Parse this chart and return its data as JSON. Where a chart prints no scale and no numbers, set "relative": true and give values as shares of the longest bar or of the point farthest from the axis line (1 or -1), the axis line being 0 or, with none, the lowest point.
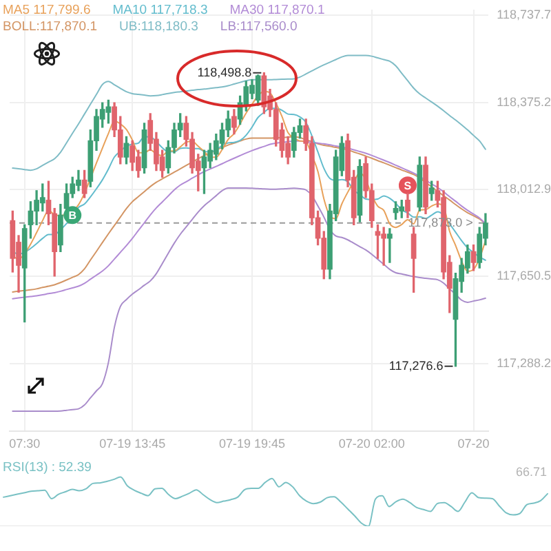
{
  "chart_data": [
    {
      "type": "candlestick",
      "categories": [
        null,
        null,
        "07:30",
        null,
        null,
        null,
        null,
        null,
        null,
        null,
        null,
        null,
        null,
        null,
        null,
        null,
        null,
        null,
        null,
        null,
        "07-19 13:45",
        null,
        null,
        null,
        null,
        null,
        null,
        null,
        null,
        null,
        null,
        null,
        null,
        null,
        null,
        null,
        null,
        null,
        null,
        null,
        "07-19 19:45",
        null,
        null,
        null,
        null,
        null,
        null,
        null,
        null,
        null,
        null,
        null,
        null,
        null,
        null,
        null,
        null,
        null,
        null,
        null,
        "07-20 02:00",
        null,
        null,
        null,
        null,
        null,
        null,
        null,
        null,
        null,
        null,
        null,
        null,
        null,
        null,
        null,
        null,
        "07-20",
        null,
        null
      ],
      "ohlc": [
        [
          117883,
          117923,
          117669,
          117726
        ],
        [
          117793,
          117821,
          117585,
          117697
        ],
        [
          117686,
          117866,
          117461,
          117850
        ],
        [
          117866,
          117962,
          117810,
          117923
        ],
        [
          117923,
          118008,
          117866,
          117968
        ],
        [
          117957,
          118036,
          117923,
          117979
        ],
        [
          117968,
          118047,
          117866,
          117912
        ],
        [
          117912,
          117934,
          117652,
          117754
        ],
        [
          117782,
          117951,
          117754,
          117906
        ],
        [
          117934,
          118036,
          117929,
          117996
        ],
        [
          117996,
          118064,
          117979,
          118036
        ],
        [
          118030,
          118092,
          118008,
          118052
        ],
        [
          118052,
          118092,
          117979,
          117996
        ],
        [
          118047,
          118261,
          118024,
          118216
        ],
        [
          118216,
          118346,
          118176,
          118317
        ],
        [
          118306,
          118374,
          118272,
          118346
        ],
        [
          118334,
          118385,
          118289,
          118357
        ],
        [
          118357,
          118374,
          118233,
          118261
        ],
        [
          118261,
          118317,
          118120,
          118148
        ],
        [
          118148,
          118233,
          118120,
          118205
        ],
        [
          118194,
          118216,
          118092,
          118126
        ],
        [
          118148,
          118176,
          118064,
          118092
        ],
        [
          118103,
          118289,
          118081,
          118261
        ],
        [
          118300,
          118329,
          118176,
          118205
        ],
        [
          118222,
          118250,
          118092,
          118120
        ],
        [
          118148,
          118176,
          118064,
          118092
        ],
        [
          118103,
          118216,
          118081,
          118188
        ],
        [
          118188,
          118289,
          118165,
          118261
        ],
        [
          118261,
          118329,
          118233,
          118289
        ],
        [
          118289,
          118317,
          118194,
          118222
        ],
        [
          118222,
          118250,
          118081,
          118103
        ],
        [
          118131,
          118160,
          118007,
          118092
        ],
        [
          118103,
          118176,
          117996,
          118148
        ],
        [
          118131,
          118205,
          118103,
          118176
        ],
        [
          118160,
          118244,
          118137,
          118216
        ],
        [
          118205,
          118289,
          118182,
          118261
        ],
        [
          118261,
          118340,
          118233,
          118306
        ],
        [
          118317,
          118346,
          118244,
          118272
        ],
        [
          118306,
          118402,
          118284,
          118374
        ],
        [
          118363,
          118464,
          118340,
          118441
        ],
        [
          118413,
          118470,
          118391,
          118447
        ],
        [
          118385,
          118490,
          118363,
          118486
        ],
        [
          118486,
          118498.8,
          118329,
          118357
        ],
        [
          118402,
          118430,
          118317,
          118346
        ],
        [
          118346,
          118374,
          118194,
          118222
        ],
        [
          118261,
          118289,
          118148,
          118176
        ],
        [
          118205,
          118233,
          118120,
          118148
        ],
        [
          118176,
          118272,
          118148,
          118250
        ],
        [
          118250,
          118306,
          118227,
          118278
        ],
        [
          118278,
          118306,
          118176,
          118205
        ],
        [
          118205,
          118233,
          117866,
          117895
        ],
        [
          117895,
          117923,
          117782,
          117810
        ],
        [
          117810,
          117838,
          117641,
          117681
        ],
        [
          117681,
          117951,
          117641,
          117923
        ],
        [
          117912,
          118176,
          117883,
          118148
        ],
        [
          118092,
          118233,
          118070,
          118205
        ],
        [
          118216,
          118244,
          118024,
          118052
        ],
        [
          118064,
          118092,
          117866,
          117895
        ],
        [
          117906,
          118137,
          117878,
          118109
        ],
        [
          118120,
          118148,
          117979,
          118008
        ],
        [
          118008,
          118036,
          117855,
          117883
        ],
        [
          117838,
          117866,
          117726,
          117822
        ],
        [
          117827,
          117855,
          117697,
          117810
        ],
        [
          117810,
          117850,
          117709,
          117827
        ],
        [
          117917,
          117962,
          117889,
          117934
        ],
        [
          117923,
          117968,
          117895,
          117940
        ],
        [
          117968,
          117996,
          117895,
          117923
        ],
        [
          117827,
          117855,
          117585,
          117726
        ],
        [
          117940,
          118148,
          117923,
          118114
        ],
        [
          118114,
          118148,
          117912,
          117940
        ],
        [
          117996,
          118047,
          117968,
          118019
        ],
        [
          118008,
          118047,
          117940,
          117968
        ],
        [
          117979,
          118008,
          117641,
          117669
        ],
        [
          117709,
          117737,
          117500,
          117601
        ],
        [
          117472,
          117664,
          117276.6,
          117641
        ],
        [
          117630,
          117726,
          117585,
          117697
        ],
        [
          117686,
          117782,
          117664,
          117754
        ],
        [
          117754,
          117782,
          117675,
          117709
        ],
        [
          117709,
          117855,
          117686,
          117827
        ],
        [
          117810,
          117912,
          117782,
          117873.0
        ]
      ],
      "colors": [
        "#e0646c",
        "#e0646c",
        "#3d9f74",
        "#3d9f74",
        "#3d9f74",
        "#3d9f74",
        "#e0646c",
        "#e0646c",
        "#3d9f74",
        "#3d9f74",
        "#3d9f74",
        "#3d9f74",
        "#e0646c",
        "#3d9f74",
        "#3d9f74",
        "#3d9f74",
        "#3d9f74",
        "#e0646c",
        "#e0646c",
        "#3d9f74",
        "#e0646c",
        "#e0646c",
        "#3d9f74",
        "#e0646c",
        "#e0646c",
        "#e0646c",
        "#3d9f74",
        "#3d9f74",
        "#3d9f74",
        "#e0646c",
        "#e0646c",
        "#e0646c",
        "#3d9f74",
        "#3d9f74",
        "#3d9f74",
        "#3d9f74",
        "#3d9f74",
        "#e0646c",
        "#3d9f74",
        "#3d9f74",
        "#3d9f74",
        "#3d9f74",
        "#e0646c",
        "#e0646c",
        "#e0646c",
        "#e0646c",
        "#e0646c",
        "#3d9f74",
        "#3d9f74",
        "#e0646c",
        "#e0646c",
        "#e0646c",
        "#e0646c",
        "#3d9f74",
        "#3d9f74",
        "#3d9f74",
        "#e0646c",
        "#e0646c",
        "#3d9f74",
        "#e0646c",
        "#e0646c",
        "#e0646c",
        "#e0646c",
        "#3d9f74",
        "#3d9f74",
        "#3d9f74",
        "#e0646c",
        "#e0646c",
        "#3d9f74",
        "#e0646c",
        "#3d9f74",
        "#e0646c",
        "#e0646c",
        "#e0646c",
        "#3d9f74",
        "#3d9f74",
        "#3d9f74",
        "#e0646c",
        "#3d9f74",
        "#3d9f74"
      ],
      "series": [
        {
          "name": "MA5 117,799.6",
          "type": "line",
          "color": "#e8a15a",
          "values": [
            117735,
            117723,
            117745,
            117785,
            117833,
            117883,
            117926,
            117907,
            117904,
            117909,
            117921,
            117949,
            117997,
            118059,
            118123,
            118185,
            118246,
            118299,
            118286,
            118263,
            118219,
            118166,
            118166,
            118178,
            118161,
            118154,
            118173,
            118173,
            118190,
            118210,
            118213,
            118193,
            118171,
            118148,
            118147,
            118179,
            118221,
            118246,
            118286,
            118331,
            118368,
            118404,
            118421,
            118415,
            118372,
            118317,
            118250,
            118228,
            118215,
            118211,
            118155,
            118088,
            117974,
            117903,
            117891,
            117953,
            118002,
            118045,
            118082,
            118054,
            117989,
            117943,
            117926,
            117870,
            117855,
            117867,
            117887,
            117870,
            117927,
            117929,
            117944,
            117953,
            117942,
            117839,
            117780,
            117715,
            117672,
            117680,
            117726,
            117799.6
          ]
        },
        {
          "name": "MA10 117,718.3",
          "type": "line",
          "color": "#62bccd",
          "values": [
            117754,
            117744,
            117751,
            117767,
            117787,
            117809,
            117825,
            117826,
            117845,
            117871,
            117902,
            117938,
            117952,
            117982,
            118016,
            118053,
            118098,
            118148,
            118173,
            118193,
            118202,
            118206,
            118233,
            118232,
            118212,
            118187,
            118170,
            118170,
            118184,
            118186,
            118183,
            118183,
            118172,
            118169,
            118179,
            118196,
            118207,
            118209,
            118217,
            118239,
            118273,
            118313,
            118334,
            118351,
            118351,
            118343,
            118327,
            118325,
            118315,
            118292,
            118236,
            118169,
            118101,
            118059,
            118051,
            118054,
            118045,
            118009,
            117992,
            117973,
            117971,
            117973,
            117986,
            117976,
            117955,
            117928,
            117915,
            117898,
            117899,
            117892,
            117906,
            117920,
            117906,
            117870,
            117835,
            117800,
            117770,
            117750,
            117732,
            117718.3
          ]
        },
        {
          "name": "MA30 117,870.1",
          "type": "line",
          "color": "#b28bd6",
          "values": [
            117558,
            117561,
            117564,
            117567,
            117570,
            117574,
            117579,
            117583,
            117589,
            117596,
            117603,
            117610,
            117622,
            117639,
            117656,
            117673,
            117695,
            117723,
            117751,
            117779,
            117809,
            117842,
            117874,
            117907,
            117936,
            117961,
            117986,
            118011,
            118031,
            118045,
            118060,
            118074,
            118087,
            118098,
            118109,
            118120,
            118132,
            118143,
            118154,
            118165,
            118175,
            118184,
            118192,
            118201,
            118206,
            118209,
            118212,
            118215,
            118215,
            118212,
            118209,
            118206,
            118203,
            118199,
            118194,
            118190,
            118185,
            118178,
            118171,
            118164,
            118155,
            118145,
            118135,
            118125,
            118114,
            118103,
            118092,
            118081,
            118067,
            118052,
            118036,
            118021,
            118003,
            117983,
            117964,
            117944,
            117926,
            117910,
            117894,
            117870.1
          ]
        },
        {
          "name": "BOLL:117,870.1",
          "type": "line",
          "color": "#d39564",
          "values": [
            117586,
            117589,
            117592,
            117595,
            117599,
            117605,
            117610,
            117616,
            117625,
            117636,
            117647,
            117658,
            117682,
            117719,
            117755,
            117792,
            117828,
            117863,
            117898,
            117933,
            117962,
            117983,
            118004,
            118025,
            118043,
            118057,
            118071,
            118085,
            118099,
            118113,
            118127,
            118141,
            118154,
            118165,
            118177,
            118188,
            118198,
            118206,
            118215,
            118223,
            118227,
            118227,
            118227,
            118227,
            118228,
            118229,
            118231,
            118232,
            118229,
            118220,
            118212,
            118203,
            118197,
            118193,
            118188,
            118184,
            118178,
            118169,
            118161,
            118152,
            118143,
            118133,
            118124,
            118114,
            118104,
            118094,
            118085,
            118075,
            118061,
            118042,
            118024,
            118005,
            117987,
            117969,
            117950,
            117932,
            117916,
            117903,
            117890,
            117870.1
          ]
        },
        {
          "name": "UB:118,180.3",
          "type": "line",
          "color": "#7fbcc6",
          "values": [
            118102,
            118099,
            118096,
            118093,
            118099,
            118113,
            118127,
            118141,
            118168,
            118207,
            118247,
            118286,
            118327,
            118368,
            118409,
            118450,
            118463,
            118449,
            118434,
            118420,
            118412,
            118409,
            118406,
            118403,
            118404,
            118408,
            118413,
            118417,
            118420,
            118423,
            118426,
            118429,
            118431,
            118434,
            118437,
            118440,
            118445,
            118452,
            118459,
            118466,
            118470,
            118470,
            118470,
            118470,
            118471,
            118472,
            118473,
            118474,
            118481,
            118494,
            118507,
            118520,
            118532,
            118543,
            118554,
            118565,
            118571,
            118571,
            118571,
            118571,
            118568,
            118561,
            118554,
            118547,
            118528,
            118497,
            118466,
            118435,
            118411,
            118394,
            118377,
            118360,
            118341,
            118321,
            118302,
            118282,
            118261,
            118238,
            118215,
            118180.3
          ]
        },
        {
          "name": "LB:117,560.0",
          "type": "line",
          "color": "#a98ccb",
          "values": [
            117089,
            117089,
            117089,
            117089,
            117089,
            117089,
            117089,
            117089,
            117090,
            117093,
            117096,
            117099,
            117115,
            117145,
            117174,
            117204,
            117292,
            117439,
            117526,
            117554,
            117577,
            117595,
            117614,
            117632,
            117662,
            117704,
            117747,
            117789,
            117826,
            117857,
            117888,
            117919,
            117945,
            117966,
            117987,
            118008,
            118019,
            118019,
            118019,
            118019,
            118018,
            118017,
            118015,
            118014,
            118014,
            118015,
            118017,
            118018,
            118016,
            118011,
            117987,
            117944,
            117898,
            117847,
            117819,
            117813,
            117803,
            117789,
            117775,
            117761,
            117743,
            117722,
            117701,
            117680,
            117666,
            117661,
            117655,
            117650,
            117646,
            117643,
            117640,
            117637,
            117623,
            117599,
            117576,
            117552,
            117543,
            117548,
            117553,
            117560.0
          ]
        },
        {
          "name": "B",
          "type": "scatter",
          "marker": "circle",
          "color": "#3aa776",
          "values": [
            null,
            null,
            null,
            null,
            null,
            null,
            null,
            null,
            null,
            null,
            117906,
            null,
            null,
            null,
            null,
            null,
            null,
            null,
            null,
            null,
            null,
            null,
            null,
            null,
            null,
            null,
            null,
            null,
            null,
            null,
            null,
            null,
            null,
            null,
            null,
            null,
            null,
            null,
            null,
            null,
            null,
            null,
            null,
            null,
            null,
            null,
            null,
            null,
            null,
            null,
            null,
            null,
            null,
            null,
            null,
            null,
            null,
            null,
            null,
            null,
            null,
            null,
            null,
            null,
            null,
            null,
            null,
            null,
            null,
            null,
            null,
            null,
            null,
            null,
            null,
            null,
            null,
            null,
            null,
            null
          ]
        },
        {
          "name": "S",
          "type": "scatter",
          "marker": "circle",
          "color": "#e5535b",
          "values": [
            null,
            null,
            null,
            null,
            null,
            null,
            null,
            null,
            null,
            null,
            null,
            null,
            null,
            null,
            null,
            null,
            null,
            null,
            null,
            null,
            null,
            null,
            null,
            null,
            null,
            null,
            null,
            null,
            null,
            null,
            null,
            null,
            null,
            null,
            null,
            null,
            null,
            null,
            null,
            null,
            null,
            null,
            null,
            null,
            null,
            null,
            null,
            null,
            null,
            null,
            null,
            null,
            null,
            null,
            null,
            null,
            null,
            null,
            null,
            null,
            null,
            null,
            null,
            null,
            null,
            null,
            118030,
            null,
            null,
            null,
            null,
            null,
            null,
            null,
            null,
            null,
            null,
            null,
            null,
            null
          ]
        }
      ],
      "ylim": [
        117005,
        118762
      ],
      "yticks": [
        {
          "value": 118737.7,
          "label": "118,737.7"
        },
        {
          "value": 118375.2,
          "label": "118,375.2"
        },
        {
          "value": 118012.9,
          "label": "118,012.9"
        },
        {
          "value": 117650.5,
          "label": "117,650.5"
        },
        {
          "value": 117288.2,
          "label": "117,288.2"
        }
      ],
      "grid": true,
      "legend": "top left",
      "marker": "none",
      "ref_lines": [
        {
          "axis": "y",
          "value": 117873.0,
          "label": "117,873.0 >",
          "line_style": "dashed",
          "color": "#9a9a9a"
        }
      ],
      "annotations": [
        "118,498.8",
        "117,276.6"
      ]
    },
    {
      "type": "line",
      "relative": true,
      "categories": [
        null,
        null,
        null,
        null,
        null,
        null,
        null,
        null,
        null,
        null,
        null,
        null,
        null,
        null,
        null,
        null,
        null,
        null,
        null,
        null,
        null,
        null,
        null,
        null,
        null,
        null,
        null,
        null,
        null,
        null,
        null,
        null,
        null,
        null,
        null,
        null,
        null,
        null,
        null,
        null,
        null,
        null,
        null,
        null,
        null,
        null,
        null,
        null,
        null,
        null,
        null,
        null,
        null,
        null,
        null,
        null,
        null,
        null,
        null,
        null,
        null,
        null,
        null,
        null,
        null,
        null,
        null,
        null,
        null,
        null,
        null,
        null,
        null,
        null,
        null,
        null,
        null,
        null,
        null,
        null
      ],
      "series": [
        {
          "name": "RSI(13) : 52.39",
          "color": "#79c1c4",
          "values": [
            0.59,
            0.62,
            0.65,
            0.68,
            0.71,
            0.72,
            0.73,
            0.56,
            0.65,
            0.7,
            0.75,
            0.72,
            0.76,
            0.87,
            0.88,
            0.91,
            0.95,
            1.0,
            0.82,
            0.73,
            0.67,
            0.62,
            0.76,
            0.77,
            0.64,
            0.56,
            0.61,
            0.67,
            0.74,
            0.64,
            0.54,
            0.48,
            0.51,
            0.54,
            0.59,
            0.74,
            0.77,
            0.77,
            0.89,
            0.97,
            0.8,
            0.89,
            0.8,
            0.62,
            0.51,
            0.46,
            0.49,
            0.58,
            0.6,
            0.49,
            0.35,
            0.21,
            0.06,
            0.0,
            0.55,
            0.62,
            0.4,
            0.5,
            0.55,
            0.48,
            0.38,
            0.34,
            0.3,
            0.46,
            0.48,
            0.4,
            0.3,
            0.49,
            0.68,
            0.58,
            0.57,
            0.56,
            0.41,
            0.27,
            0.23,
            0.26,
            0.44,
            0.47,
            0.52,
            0.66
          ]
        }
      ],
      "legend": "top left",
      "marker": "none",
      "annotations": [
        "66.71"
      ]
    }
  ]
}
